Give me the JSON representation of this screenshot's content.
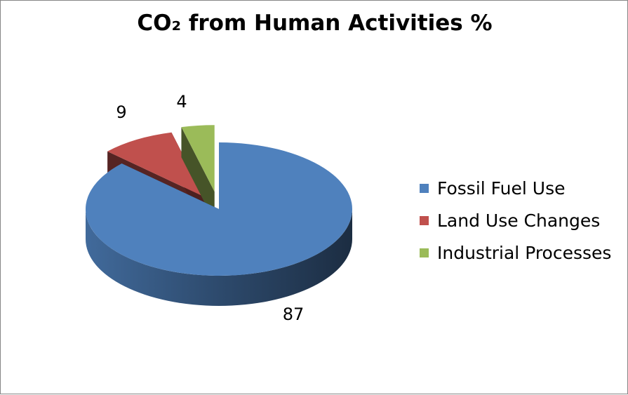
{
  "chart_data": {
    "type": "pie",
    "title": "CO₂  from Human Activities %",
    "categories": [
      "Fossil Fuel Use",
      "Land Use Changes",
      "Industrial Processes"
    ],
    "values": [
      87,
      9,
      4
    ],
    "data_labels": [
      "87",
      "9",
      "4"
    ],
    "colors": [
      "#4F81BD",
      "#C0504D",
      "#9BBB59"
    ],
    "style": "3d-exploded",
    "legend": "right"
  }
}
